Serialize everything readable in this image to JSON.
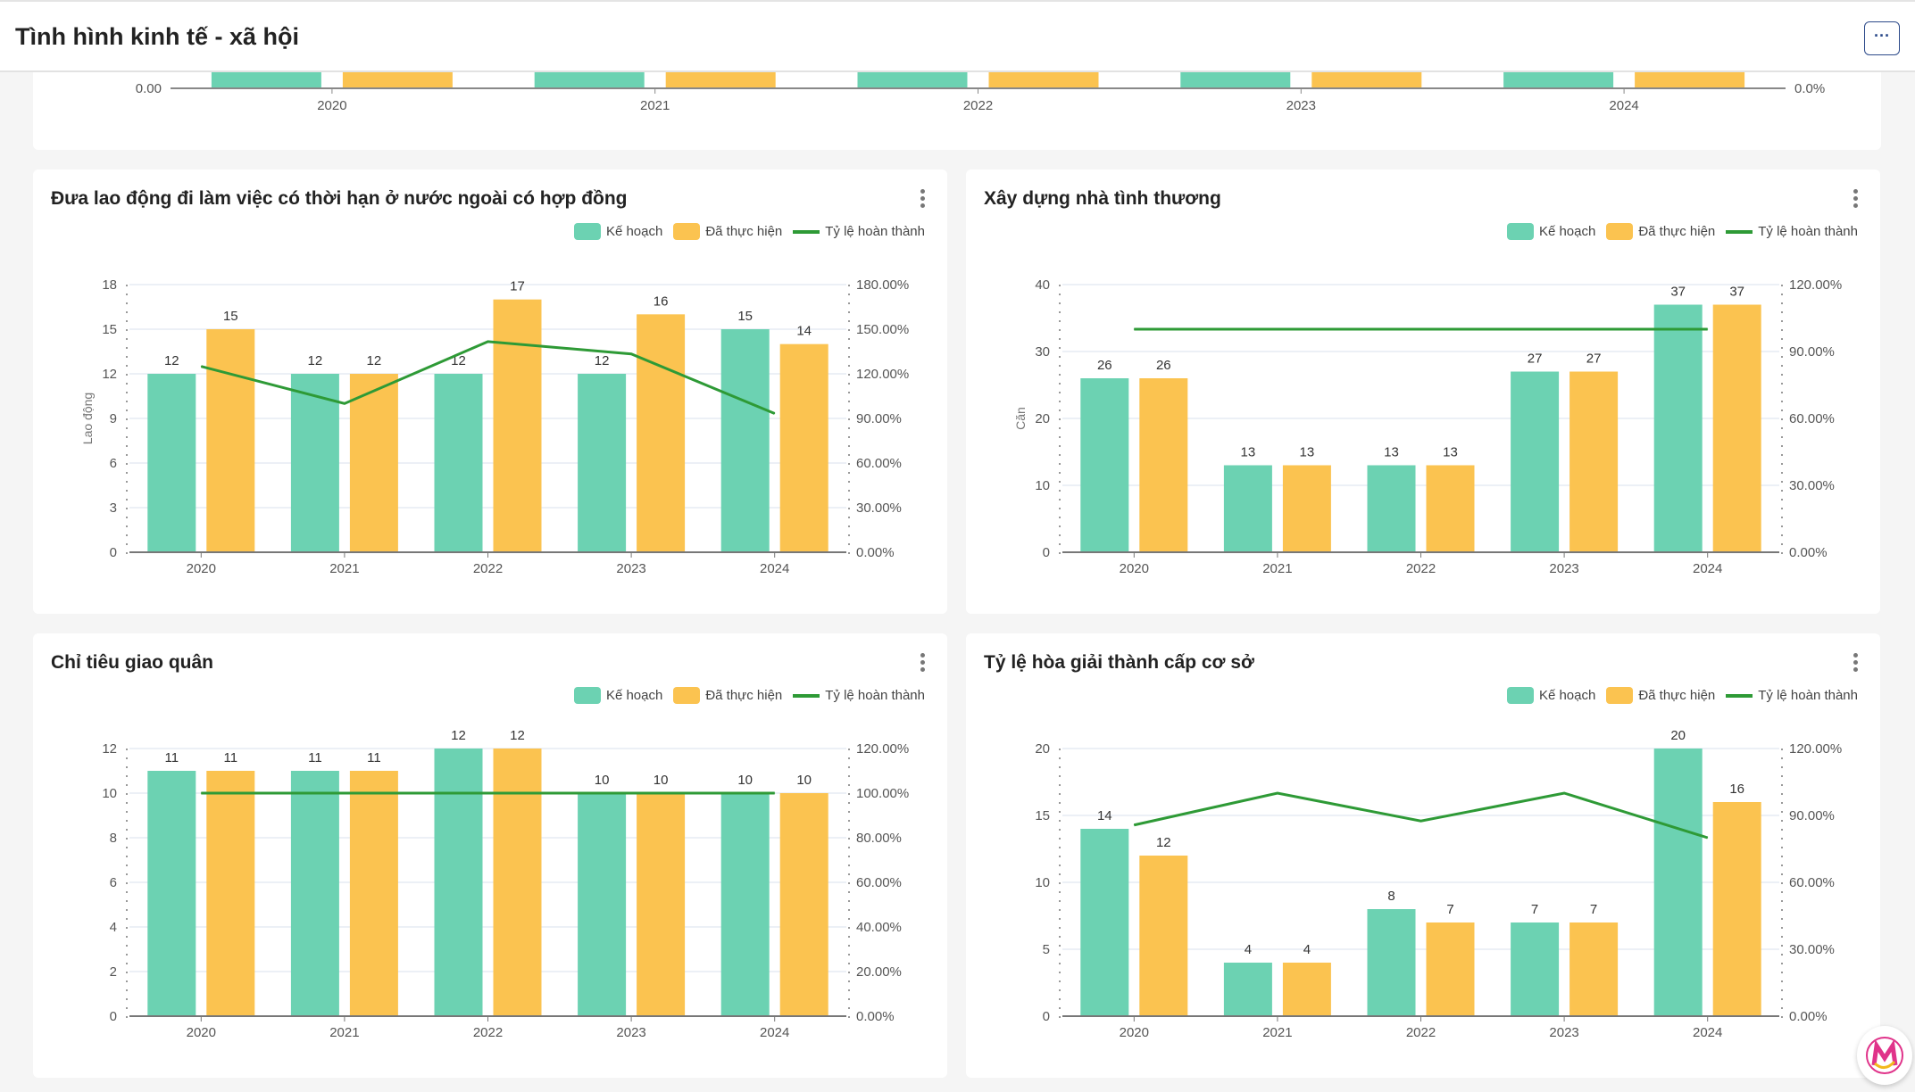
{
  "header": {
    "title": "Tình hình kinh tế - xã hội",
    "more_label": "···"
  },
  "top_chart": {
    "left_tick": "0.00",
    "right_tick": "0.0%",
    "categories": [
      "2020",
      "2021",
      "2022",
      "2023",
      "2024"
    ]
  },
  "legend": {
    "plan": "Kế hoạch",
    "done": "Đã thực hiện",
    "rate": "Tỷ lệ hoàn thành"
  },
  "colors": {
    "plan": "#6cd2b2",
    "done": "#fbc350",
    "rate": "#2e9a36"
  },
  "chart_data": [
    {
      "type": "bar",
      "title": "Đưa lao động đi làm việc có thời hạn ở nước ngoài có hợp đồng",
      "ylabel": "Lao động",
      "categories": [
        "2020",
        "2021",
        "2022",
        "2023",
        "2024"
      ],
      "series": [
        {
          "name": "Kế hoạch",
          "values": [
            12,
            12,
            12,
            12,
            15
          ]
        },
        {
          "name": "Đã thực hiện",
          "values": [
            15,
            12,
            17,
            16,
            14
          ]
        },
        {
          "name": "Tỷ lệ hoàn thành",
          "type": "line",
          "values": [
            125,
            100,
            141.67,
            133.33,
            93.33
          ]
        }
      ],
      "ylim": [
        0,
        18
      ],
      "yticks": [
        "0",
        "3",
        "6",
        "9",
        "12",
        "15",
        "18"
      ],
      "y2lim": [
        0,
        180
      ],
      "y2ticks": [
        "0.00%",
        "30.00%",
        "60.00%",
        "90.00%",
        "120.00%",
        "150.00%",
        "180.00%"
      ]
    },
    {
      "type": "bar",
      "title": "Xây dựng nhà tình thương",
      "ylabel": "Căn",
      "categories": [
        "2020",
        "2021",
        "2022",
        "2023",
        "2024"
      ],
      "series": [
        {
          "name": "Kế hoạch",
          "values": [
            26,
            13,
            13,
            27,
            37
          ]
        },
        {
          "name": "Đã thực hiện",
          "values": [
            26,
            13,
            13,
            27,
            37
          ]
        },
        {
          "name": "Tỷ lệ hoàn thành",
          "type": "line",
          "values": [
            100,
            100,
            100,
            100,
            100
          ]
        }
      ],
      "ylim": [
        0,
        40
      ],
      "yticks": [
        "0",
        "10",
        "20",
        "30",
        "40"
      ],
      "y2lim": [
        0,
        120
      ],
      "y2ticks": [
        "0.00%",
        "30.00%",
        "60.00%",
        "90.00%",
        "120.00%"
      ]
    },
    {
      "type": "bar",
      "title": "Chỉ tiêu giao quân",
      "ylabel": "",
      "categories": [
        "2020",
        "2021",
        "2022",
        "2023",
        "2024"
      ],
      "series": [
        {
          "name": "Kế hoạch",
          "values": [
            11,
            11,
            12,
            10,
            10
          ]
        },
        {
          "name": "Đã thực hiện",
          "values": [
            11,
            11,
            12,
            10,
            10
          ]
        },
        {
          "name": "Tỷ lệ hoàn thành",
          "type": "line",
          "values": [
            100,
            100,
            100,
            100,
            100
          ]
        }
      ],
      "ylim": [
        0,
        12
      ],
      "yticks": [
        "0",
        "2",
        "4",
        "6",
        "8",
        "10",
        "12"
      ],
      "y2lim": [
        0,
        120
      ],
      "y2ticks": [
        "0.00%",
        "20.00%",
        "40.00%",
        "60.00%",
        "80.00%",
        "100.00%",
        "120.00%"
      ]
    },
    {
      "type": "bar",
      "title": "Tỷ lệ hòa giải thành cấp cơ sở",
      "ylabel": "",
      "categories": [
        "2020",
        "2021",
        "2022",
        "2023",
        "2024"
      ],
      "series": [
        {
          "name": "Kế hoạch",
          "values": [
            14,
            4,
            8,
            7,
            20
          ]
        },
        {
          "name": "Đã thực hiện",
          "values": [
            12,
            4,
            7,
            7,
            16
          ]
        },
        {
          "name": "Tỷ lệ hoàn thành",
          "type": "line",
          "values": [
            85.71,
            100,
            87.5,
            100,
            80
          ]
        }
      ],
      "ylim": [
        0,
        20
      ],
      "yticks": [
        "0",
        "5",
        "10",
        "15",
        "20"
      ],
      "y2lim": [
        0,
        120
      ],
      "y2ticks": [
        "0.00%",
        "30.00%",
        "60.00%",
        "90.00%",
        "120.00%"
      ]
    }
  ]
}
